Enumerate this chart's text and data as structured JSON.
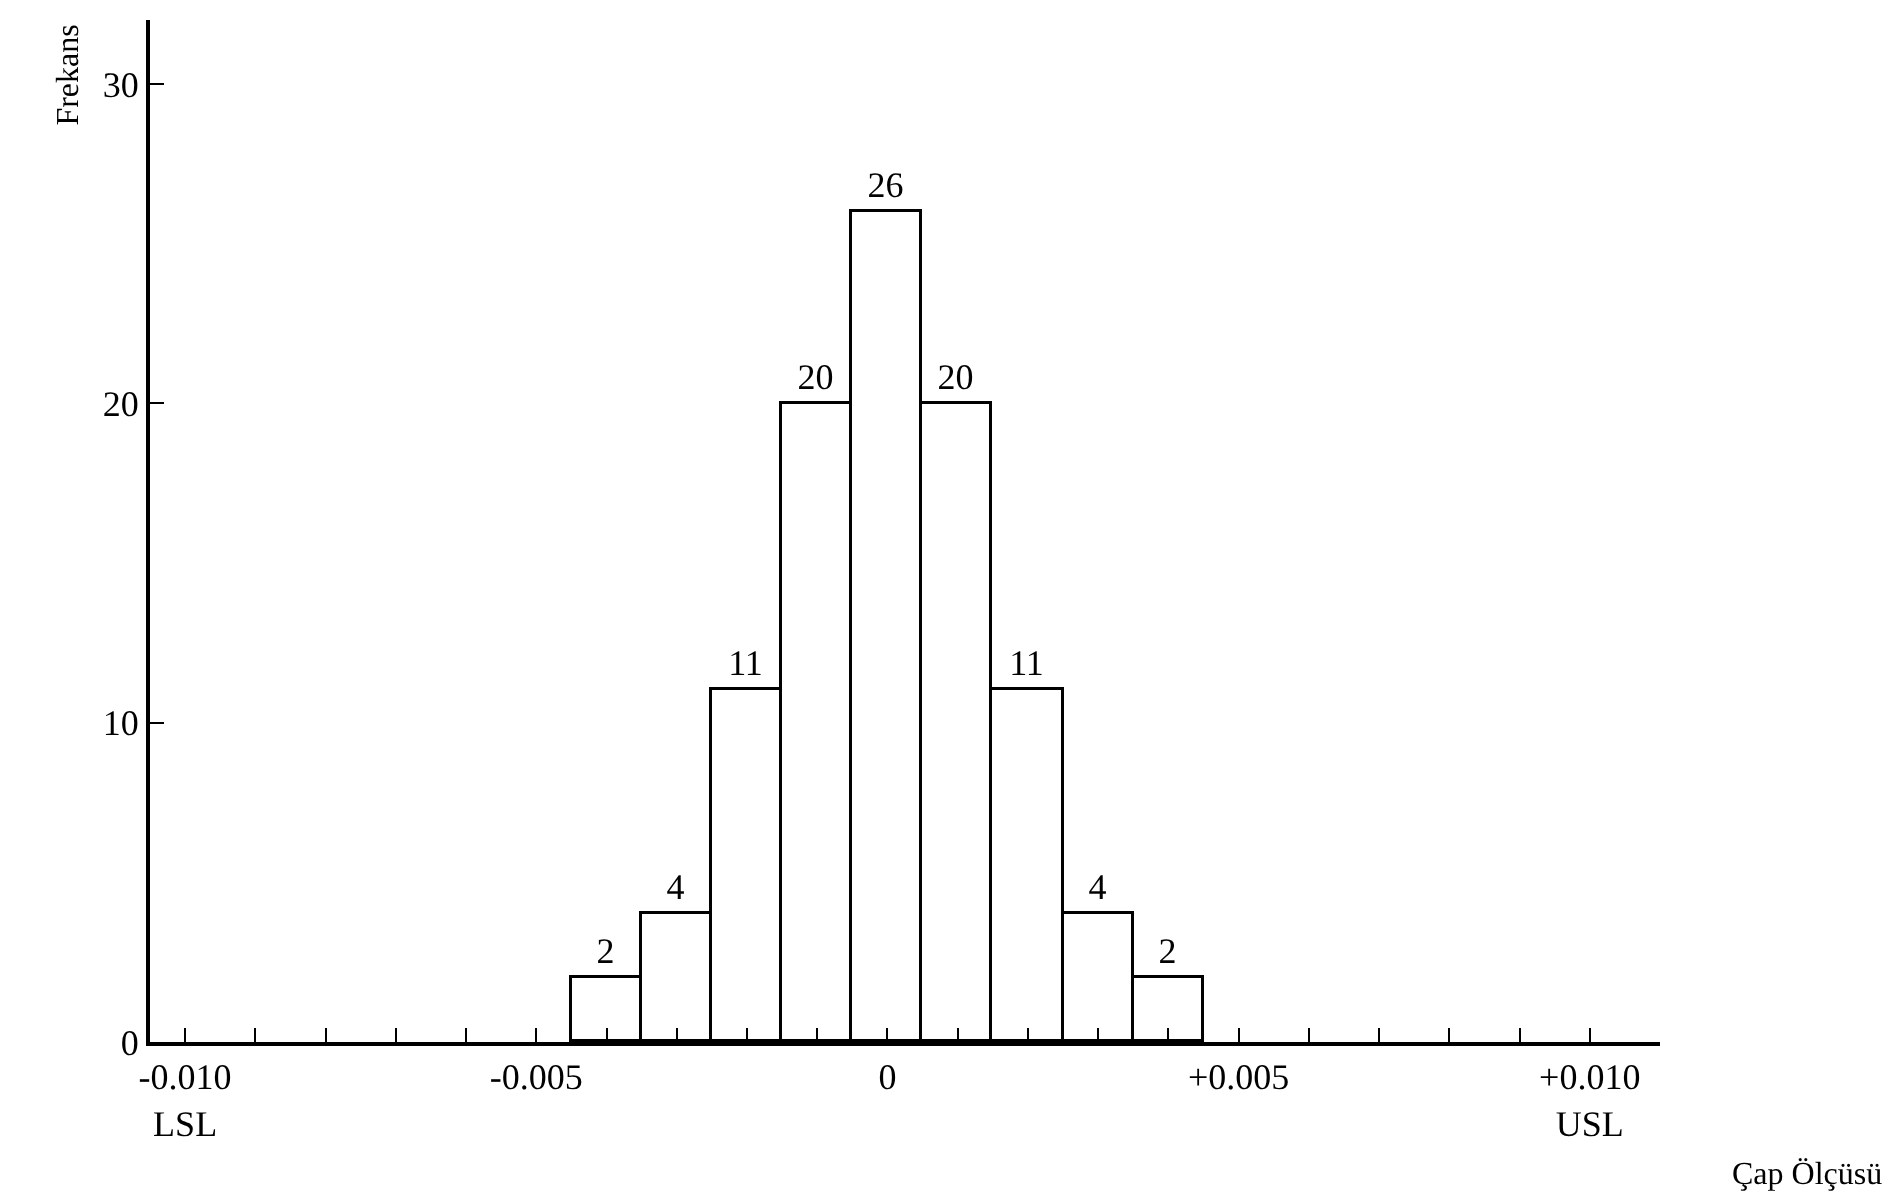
{
  "chart_data": {
    "type": "histogram",
    "xlabel": "Çap Ölçüsü",
    "ylabel": "Frekans",
    "bins": [
      -0.0045,
      -0.0035,
      -0.0025,
      -0.0015,
      -0.0005,
      0.0005,
      0.0015,
      0.0025,
      0.0035,
      0.0045
    ],
    "values": [
      2,
      4,
      11,
      20,
      26,
      20,
      11,
      4,
      2
    ],
    "color": "#ffffff",
    "data_labels": true,
    "grid": false,
    "xlim": [
      -0.0105,
      0.011
    ],
    "ylim": [
      0,
      32
    ],
    "xticks": [
      {
        "value": -0.01,
        "label": "-0.010\nLSL"
      },
      {
        "value": -0.009,
        "label": null
      },
      {
        "value": -0.008,
        "label": null
      },
      {
        "value": -0.007,
        "label": null
      },
      {
        "value": -0.006,
        "label": null
      },
      {
        "value": -0.005,
        "label": "-0.005"
      },
      {
        "value": -0.004,
        "label": null
      },
      {
        "value": -0.003,
        "label": null
      },
      {
        "value": -0.002,
        "label": null
      },
      {
        "value": -0.001,
        "label": null
      },
      {
        "value": 0,
        "label": "0"
      },
      {
        "value": 0.001,
        "label": null
      },
      {
        "value": 0.002,
        "label": null
      },
      {
        "value": 0.003,
        "label": null
      },
      {
        "value": 0.004,
        "label": null
      },
      {
        "value": 0.005,
        "label": "+0.005"
      },
      {
        "value": 0.006,
        "label": null
      },
      {
        "value": 0.007,
        "label": null
      },
      {
        "value": 0.008,
        "label": null
      },
      {
        "value": 0.009,
        "label": null
      },
      {
        "value": 0.01,
        "label": "+0.010\nUSL"
      }
    ],
    "yticks": [
      0,
      10,
      20,
      30
    ]
  }
}
